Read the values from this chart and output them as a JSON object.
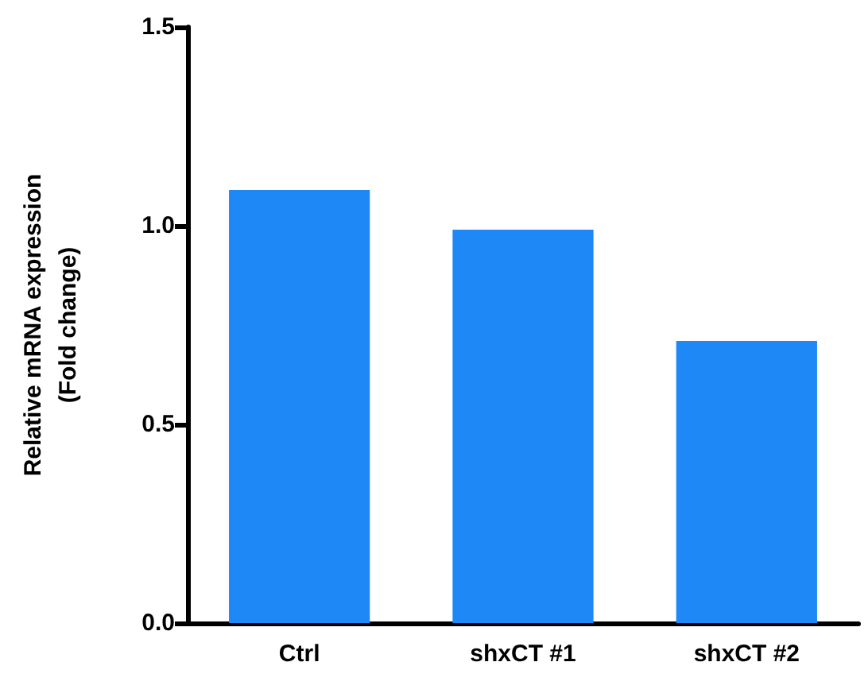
{
  "chart_data": {
    "type": "bar",
    "ylabel": "Relative mRNA expression\n(Fold change)",
    "categories": [
      "Ctrl",
      "shxCT #1",
      "shxCT #2"
    ],
    "values": [
      1.09,
      0.99,
      0.71
    ],
    "color": "#1e88f7",
    "ylim": [
      0,
      1.5
    ],
    "yticks": [
      {
        "value": 0,
        "label": "0.0"
      },
      {
        "value": 0.5,
        "label": "0.5"
      },
      {
        "value": 1,
        "label": "1.0"
      },
      {
        "value": 1.5,
        "label": "1.5"
      }
    ],
    "grid": false
  }
}
